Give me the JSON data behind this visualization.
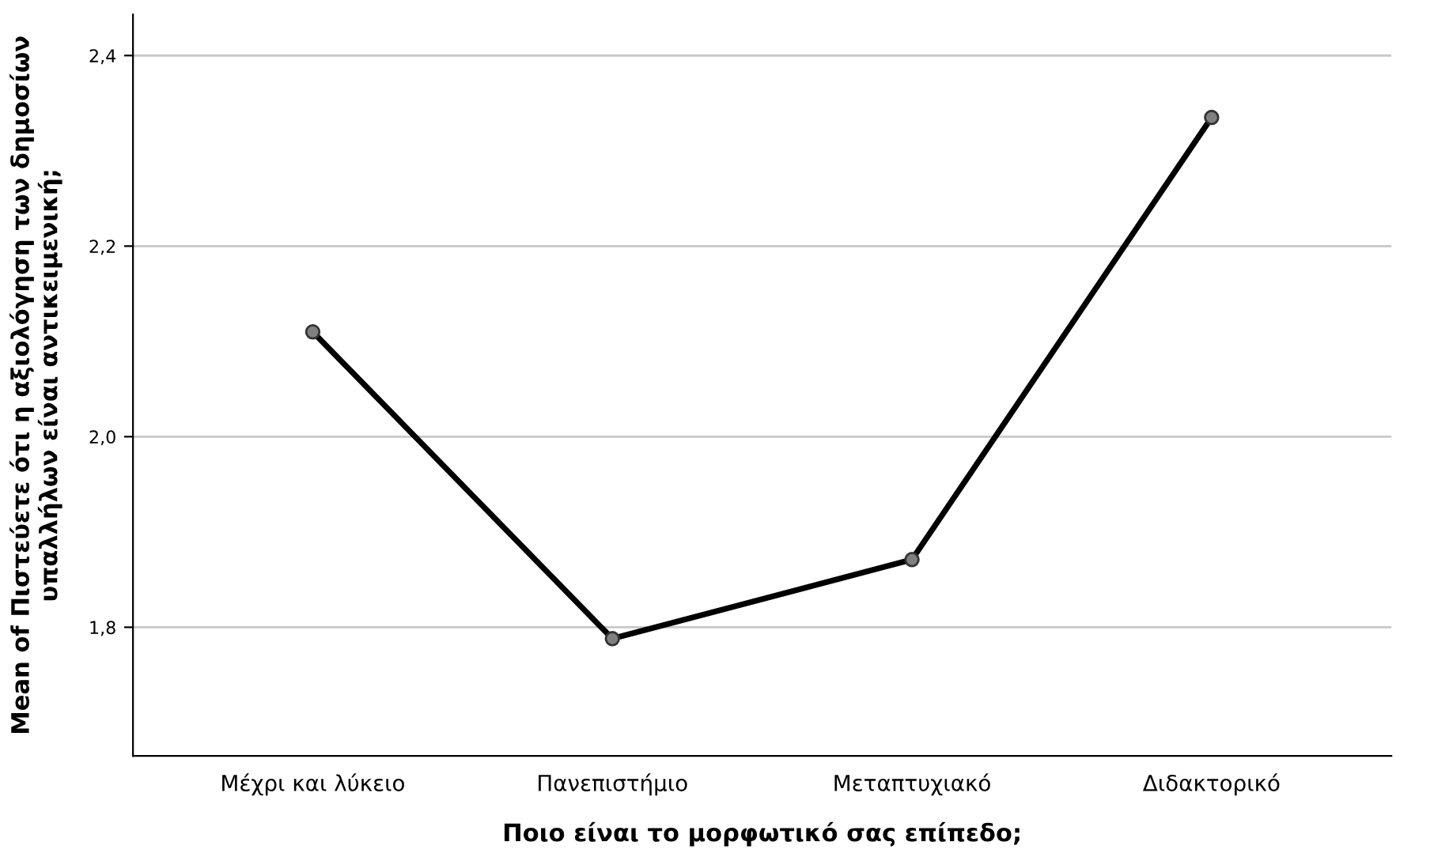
{
  "chart_data": {
    "type": "line",
    "categories": [
      "Μέχρι και λύκειο",
      "Πανεπιστήμιο",
      "Μεταπτυχιακό",
      "Διδακτορικό"
    ],
    "series": [
      {
        "color": "#000000",
        "values": [
          2.11,
          1.788,
          1.871,
          2.335
        ]
      }
    ],
    "xlabel": "Ποιο είναι το μορφωτικό σας επίπεδο;",
    "ylabel": "Mean of Πιστεύετε ότι η αξιολόγηση των δημοσίων\nυπαλλήλων είναι αντικειμενική;",
    "ylim": [
      1.665,
      2.443
    ],
    "yticks": [
      {
        "value": 1.8,
        "label": "1,8"
      },
      {
        "value": 2.0,
        "label": "2,0"
      },
      {
        "value": 2.2,
        "label": "2,2"
      },
      {
        "value": 2.4,
        "label": "2,4"
      }
    ],
    "grid": "y",
    "marker": "circle",
    "line_style": "solid",
    "legend": false
  }
}
